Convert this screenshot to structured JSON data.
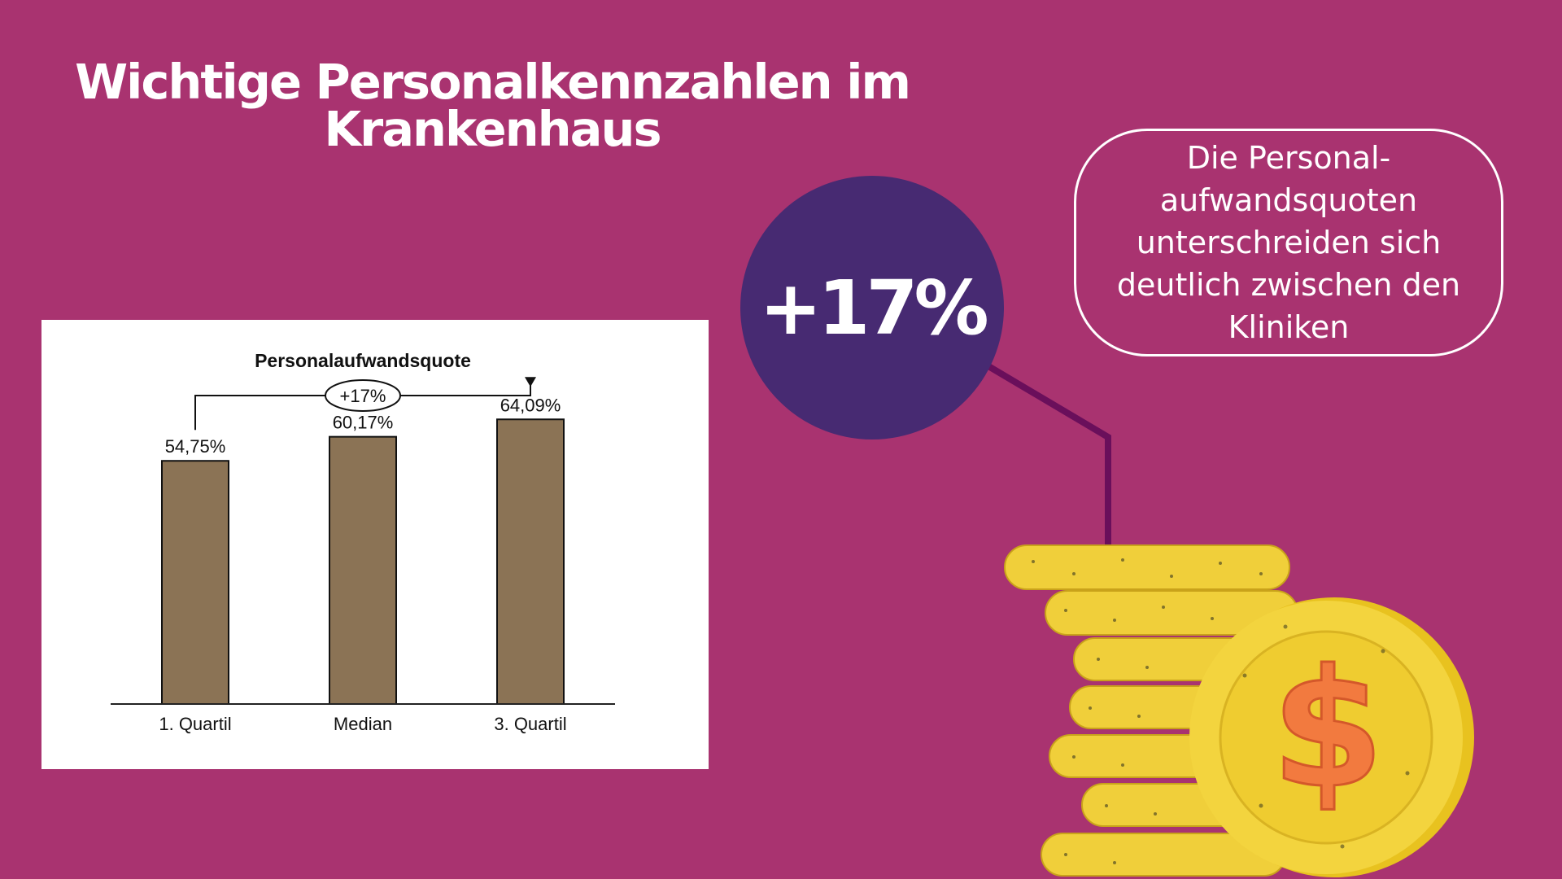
{
  "page": {
    "title_line1": "Wichtige Personalkennzahlen im",
    "title_line2": "Krankenhaus",
    "highlight_value": "+17%",
    "callout_text": "Die Personal-aufwandsquoten unterschreiden sich deutlich zwischen den Kliniken",
    "background_color": "#a93370",
    "circle_color": "#472a72",
    "coin_icon": "dollar-coin-stack-icon"
  },
  "chart_data": {
    "type": "bar",
    "title": "Personalaufwandsquote",
    "categories": [
      "1. Quartil",
      "Median",
      "3. Quartil"
    ],
    "values": [
      54.75,
      60.17,
      64.09
    ],
    "value_labels": [
      "54,75%",
      "60,17%",
      "64,09%"
    ],
    "annotation": "+17%",
    "bar_color": "#8b7355",
    "ylim": [
      0,
      70
    ],
    "grid": false,
    "legend": "none"
  }
}
